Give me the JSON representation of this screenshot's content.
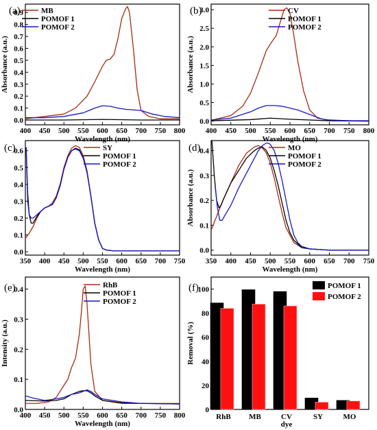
{
  "chart_data": [
    {
      "panel": "(a)",
      "type": "line",
      "xlabel": "Wavelength (nm)",
      "ylabel": "Absorbance (a.u.)",
      "xlim": [
        400,
        800
      ],
      "ylim": [
        -0.04,
        0.97
      ],
      "xticks": [
        400,
        450,
        500,
        550,
        600,
        650,
        700,
        750,
        800
      ],
      "yticks": [
        0.0,
        0.1,
        0.2,
        0.3,
        0.4,
        0.5,
        0.6,
        0.7,
        0.8,
        0.9
      ],
      "legend": "top-left",
      "series": [
        {
          "name": "MB",
          "color": "#a52a10",
          "x": [
            400,
            450,
            500,
            530,
            560,
            580,
            600,
            610,
            620,
            630,
            640,
            650,
            660,
            665,
            670,
            680,
            690,
            700,
            720,
            750,
            800
          ],
          "y": [
            0.01,
            0.03,
            0.05,
            0.1,
            0.2,
            0.32,
            0.45,
            0.5,
            0.51,
            0.55,
            0.68,
            0.85,
            0.93,
            0.95,
            0.9,
            0.6,
            0.25,
            0.08,
            0.03,
            0.01,
            0.01
          ]
        },
        {
          "name": "POMOF 1",
          "color": "#000000",
          "x": [
            400,
            500,
            600,
            700,
            800
          ],
          "y": [
            0.0,
            0.0,
            0.005,
            0.0,
            0.0
          ]
        },
        {
          "name": "POMOF 2",
          "color": "#1515c8",
          "x": [
            400,
            450,
            500,
            550,
            580,
            600,
            620,
            640,
            660,
            680,
            700,
            730,
            760,
            800
          ],
          "y": [
            0.02,
            0.02,
            0.03,
            0.06,
            0.1,
            0.12,
            0.115,
            0.1,
            0.09,
            0.085,
            0.08,
            0.05,
            0.03,
            0.02
          ]
        }
      ]
    },
    {
      "panel": "(b)",
      "type": "line",
      "xlabel": "Wavelength (nm)",
      "ylabel": "Absorbance (a.u.)",
      "xlim": [
        400,
        800
      ],
      "ylim": [
        -0.1,
        3.15
      ],
      "xticks": [
        400,
        450,
        500,
        550,
        600,
        650,
        700,
        750,
        800
      ],
      "yticks": [
        0.0,
        0.5,
        1.0,
        1.5,
        2.0,
        2.5,
        3.0
      ],
      "legend": "top-right",
      "series": [
        {
          "name": "CV",
          "color": "#a52a10",
          "x": [
            400,
            450,
            480,
            500,
            520,
            540,
            555,
            565,
            575,
            585,
            592,
            600,
            610,
            620,
            635,
            650,
            670,
            700,
            750,
            800
          ],
          "y": [
            0.02,
            0.15,
            0.4,
            0.75,
            1.3,
            1.9,
            2.15,
            2.3,
            2.65,
            3.0,
            3.05,
            2.9,
            2.3,
            1.6,
            0.8,
            0.3,
            0.08,
            0.02,
            0.01,
            0.0
          ]
        },
        {
          "name": "POMOF 1",
          "color": "#000000",
          "x": [
            400,
            500,
            550,
            600,
            700,
            800
          ],
          "y": [
            0.01,
            0.04,
            0.08,
            0.05,
            0.01,
            0.0
          ]
        },
        {
          "name": "POMOF 2",
          "color": "#1515c8",
          "x": [
            400,
            450,
            500,
            520,
            540,
            560,
            580,
            600,
            620,
            650,
            680,
            700,
            750,
            800
          ],
          "y": [
            0.03,
            0.08,
            0.25,
            0.35,
            0.42,
            0.42,
            0.4,
            0.35,
            0.3,
            0.18,
            0.06,
            0.03,
            0.01,
            0.01
          ]
        }
      ]
    },
    {
      "panel": "(c)",
      "type": "line",
      "xlabel": "Wavelength (nm)",
      "ylabel": "",
      "xlim": [
        350,
        750
      ],
      "ylim": [
        -0.02,
        0.66
      ],
      "xticks": [
        350,
        400,
        450,
        500,
        550,
        600,
        650,
        700,
        750
      ],
      "yticks": [
        0.0,
        0.1,
        0.2,
        0.3,
        0.4,
        0.5,
        0.6
      ],
      "legend": "top-right",
      "series": [
        {
          "name": "SY",
          "color": "#a52a10",
          "x": [
            350,
            360,
            370,
            380,
            390,
            400,
            410,
            420,
            430,
            440,
            450,
            460,
            470,
            480,
            490,
            500,
            510,
            520,
            530,
            540,
            550,
            560,
            580,
            600,
            650,
            700,
            750
          ],
          "y": [
            0.08,
            0.11,
            0.15,
            0.2,
            0.24,
            0.26,
            0.27,
            0.29,
            0.33,
            0.4,
            0.5,
            0.57,
            0.615,
            0.63,
            0.62,
            0.57,
            0.48,
            0.33,
            0.17,
            0.07,
            0.02,
            0.01,
            0.005,
            0.005,
            0.005,
            0.005,
            0.005
          ]
        },
        {
          "name": "POMOF 1",
          "color": "#000000",
          "x": [
            352,
            356,
            360,
            365,
            370,
            380,
            390,
            400,
            410,
            420,
            430,
            440,
            450,
            460,
            470,
            480,
            490,
            500,
            510,
            520,
            530,
            540,
            550,
            560,
            580,
            600,
            650,
            700,
            750
          ],
          "y": [
            0.62,
            0.35,
            0.22,
            0.17,
            0.17,
            0.21,
            0.24,
            0.26,
            0.27,
            0.28,
            0.32,
            0.39,
            0.49,
            0.56,
            0.6,
            0.615,
            0.605,
            0.56,
            0.47,
            0.33,
            0.17,
            0.07,
            0.02,
            0.01,
            0.005,
            0.005,
            0.005,
            0.005,
            0.005
          ]
        },
        {
          "name": "POMOF 2",
          "color": "#1515c8",
          "x": [
            352,
            356,
            360,
            365,
            370,
            380,
            390,
            400,
            410,
            420,
            430,
            440,
            450,
            460,
            470,
            480,
            490,
            500,
            510,
            520,
            530,
            540,
            550,
            560,
            580,
            600,
            650,
            700,
            750
          ],
          "y": [
            0.62,
            0.3,
            0.22,
            0.2,
            0.2,
            0.22,
            0.24,
            0.26,
            0.27,
            0.28,
            0.32,
            0.39,
            0.49,
            0.56,
            0.6,
            0.61,
            0.6,
            0.555,
            0.47,
            0.33,
            0.17,
            0.07,
            0.02,
            0.01,
            0.005,
            0.005,
            0.005,
            0.005,
            0.005
          ]
        }
      ]
    },
    {
      "panel": "(d)",
      "type": "line",
      "xlabel": "Wavelength (nm)",
      "ylabel": "Absorbance (a.u.)",
      "xlim": [
        350,
        750
      ],
      "ylim": [
        -0.02,
        0.44
      ],
      "xticks": [
        350,
        400,
        450,
        500,
        550,
        600,
        650,
        700,
        750
      ],
      "yticks": [
        0.0,
        0.1,
        0.2,
        0.3,
        0.4
      ],
      "legend": "top-right",
      "series": [
        {
          "name": "MO",
          "color": "#a52a10",
          "x": [
            350,
            360,
            370,
            380,
            400,
            420,
            440,
            460,
            470,
            480,
            490,
            500,
            510,
            520,
            530,
            540,
            560,
            580,
            600,
            650,
            700,
            750
          ],
          "y": [
            0.08,
            0.12,
            0.16,
            0.2,
            0.27,
            0.34,
            0.39,
            0.415,
            0.42,
            0.41,
            0.39,
            0.35,
            0.29,
            0.22,
            0.15,
            0.09,
            0.03,
            0.01,
            0.005,
            0.0,
            0.0,
            0.0
          ]
        },
        {
          "name": "POMOF 1",
          "color": "#000000",
          "x": [
            352,
            358,
            364,
            370,
            375,
            380,
            400,
            420,
            440,
            460,
            470,
            480,
            490,
            500,
            510,
            520,
            530,
            540,
            550,
            560,
            580,
            600,
            650,
            700,
            750
          ],
          "y": [
            0.44,
            0.3,
            0.2,
            0.17,
            0.18,
            0.2,
            0.27,
            0.32,
            0.37,
            0.4,
            0.41,
            0.415,
            0.4,
            0.37,
            0.32,
            0.26,
            0.19,
            0.12,
            0.07,
            0.04,
            0.01,
            0.005,
            0.0,
            0.0,
            0.0
          ]
        },
        {
          "name": "POMOF 2",
          "color": "#1515c8",
          "x": [
            360,
            366,
            372,
            378,
            385,
            400,
            420,
            440,
            460,
            470,
            480,
            490,
            495,
            500,
            510,
            520,
            530,
            540,
            550,
            560,
            570,
            580,
            600,
            650,
            700,
            750
          ],
          "y": [
            0.26,
            0.17,
            0.12,
            0.12,
            0.14,
            0.18,
            0.25,
            0.31,
            0.37,
            0.4,
            0.42,
            0.43,
            0.43,
            0.425,
            0.4,
            0.35,
            0.28,
            0.2,
            0.12,
            0.06,
            0.03,
            0.015,
            0.005,
            0.0,
            0.0,
            0.0
          ]
        }
      ]
    },
    {
      "panel": "(e)",
      "type": "line",
      "xlabel": "Wavelength (nm)",
      "ylabel": "Intensity (a.u.)",
      "xlim": [
        400,
        800
      ],
      "ylim": [
        0.0,
        0.44
      ],
      "xticks": [
        400,
        450,
        500,
        550,
        600,
        650,
        700,
        750,
        800
      ],
      "yticks": [
        0.0,
        0.1,
        0.2,
        0.3,
        0.4
      ],
      "legend": "top-right",
      "series": [
        {
          "name": "RhB",
          "color": "#a52a10",
          "x": [
            400,
            430,
            460,
            480,
            500,
            510,
            520,
            530,
            540,
            545,
            550,
            555,
            560,
            570,
            580,
            600,
            650,
            700,
            800
          ],
          "y": [
            0.02,
            0.02,
            0.025,
            0.04,
            0.08,
            0.1,
            0.14,
            0.17,
            0.25,
            0.32,
            0.4,
            0.41,
            0.35,
            0.15,
            0.06,
            0.03,
            0.02,
            0.02,
            0.02
          ]
        },
        {
          "name": "POMOF 1",
          "color": "#000000",
          "x": [
            400,
            450,
            480,
            500,
            520,
            540,
            550,
            560,
            570,
            580,
            600,
            650,
            700,
            800
          ],
          "y": [
            0.03,
            0.028,
            0.03,
            0.035,
            0.05,
            0.06,
            0.062,
            0.062,
            0.055,
            0.045,
            0.03,
            0.022,
            0.02,
            0.018
          ]
        },
        {
          "name": "POMOF 2",
          "color": "#1515c8",
          "x": [
            400,
            420,
            450,
            480,
            500,
            520,
            540,
            550,
            560,
            570,
            580,
            600,
            650,
            700,
            800
          ],
          "y": [
            0.045,
            0.038,
            0.03,
            0.035,
            0.04,
            0.05,
            0.055,
            0.06,
            0.065,
            0.06,
            0.05,
            0.035,
            0.025,
            0.02,
            0.018
          ]
        }
      ]
    },
    {
      "panel": "(f)",
      "type": "bar",
      "xlabel": "dye",
      "ylabel": "Removal (%)",
      "categories": [
        "RhB",
        "MB",
        "CV",
        "SY",
        "MO"
      ],
      "ylim": [
        0,
        110
      ],
      "yticks": [
        0,
        20,
        40,
        60,
        80,
        100
      ],
      "legend": "top-right",
      "series": [
        {
          "name": "POMOF 1",
          "color": "#000000",
          "values": [
            88.5,
            99.5,
            98,
            9.5,
            7.5
          ]
        },
        {
          "name": "POMOF 2",
          "color": "#ff1010",
          "values": [
            84,
            87.5,
            86,
            6,
            7
          ]
        }
      ]
    }
  ]
}
